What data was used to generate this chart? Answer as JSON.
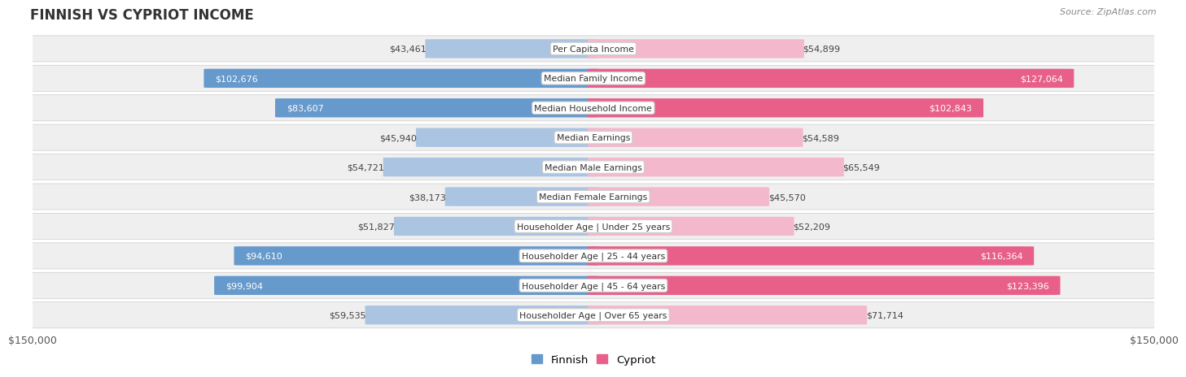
{
  "title": "Finnish vs Cypriot Income",
  "source": "Source: ZipAtlas.com",
  "categories": [
    "Per Capita Income",
    "Median Family Income",
    "Median Household Income",
    "Median Earnings",
    "Median Male Earnings",
    "Median Female Earnings",
    "Householder Age | Under 25 years",
    "Householder Age | 25 - 44 years",
    "Householder Age | 45 - 64 years",
    "Householder Age | Over 65 years"
  ],
  "finnish_values": [
    43461,
    102676,
    83607,
    45940,
    54721,
    38173,
    51827,
    94610,
    99904,
    59535
  ],
  "cypriot_values": [
    54899,
    127064,
    102843,
    54589,
    65549,
    45570,
    52209,
    116364,
    123396,
    71714
  ],
  "finnish_labels": [
    "$43,461",
    "$102,676",
    "$83,607",
    "$45,940",
    "$54,721",
    "$38,173",
    "$51,827",
    "$94,610",
    "$99,904",
    "$59,535"
  ],
  "cypriot_labels": [
    "$54,899",
    "$127,064",
    "$102,843",
    "$54,589",
    "$65,549",
    "$45,570",
    "$52,209",
    "$116,364",
    "$123,396",
    "$71,714"
  ],
  "max_value": 150000,
  "finnish_color_light": "#aac4e2",
  "finnish_color_dark": "#6699cc",
  "cypriot_color_light": "#f4b8cc",
  "cypriot_color_dark": "#e8608a",
  "bar_height": 0.62,
  "row_bg_color": "#efefef",
  "legend_finnish": "Finnish",
  "legend_cypriot": "Cypriot",
  "xlabel_left": "$150,000",
  "xlabel_right": "$150,000",
  "finnish_dark_threshold": 75000,
  "cypriot_dark_threshold": 75000
}
